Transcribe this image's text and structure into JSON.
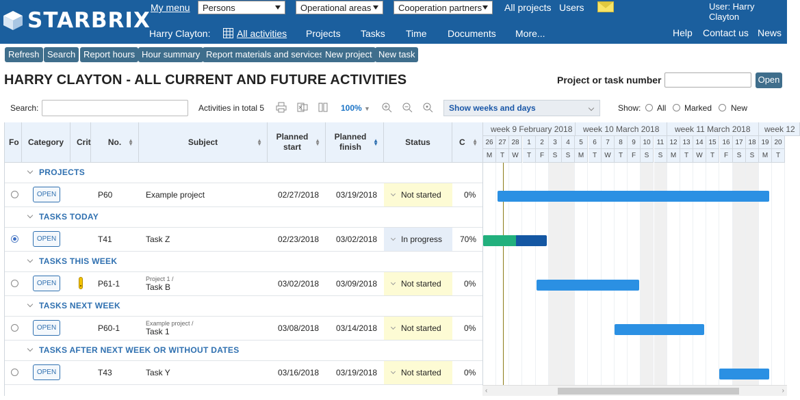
{
  "header": {
    "logo": "STARBRIX",
    "my_menu": "My menu",
    "dropdowns": [
      "Persons",
      "Operational areas",
      "Cooperation partners"
    ],
    "all_projects": "All projects",
    "users": "Users",
    "user_label": "User: Harry Clayton",
    "person_label": "Harry Clayton:",
    "nav": [
      "All activities",
      "Projects",
      "Tasks",
      "Time",
      "Documents",
      "More..."
    ],
    "right_links": [
      "Help",
      "Contact us",
      "News"
    ]
  },
  "toolbar": [
    "Refresh",
    "Search",
    "Report hours",
    "Hour summary",
    "Report materials and services",
    "New project",
    "New task"
  ],
  "page_title": "HARRY CLAYTON - ALL CURRENT AND FUTURE ACTIVITIES",
  "project_task_number_label": "Project or task number",
  "open_label": "Open",
  "filters": {
    "search_label": "Search:",
    "total": "Activities in total 5",
    "zoom": "100%",
    "show_select_prefix": "Show ",
    "show_select_value": "weeks and days",
    "show_label": "Show:",
    "show_options": [
      "All",
      "Marked",
      "New"
    ]
  },
  "columns": [
    "Fo",
    "Category",
    "Crit",
    "No.",
    "Subject",
    "Planned start",
    "Planned finish",
    "Status",
    "C"
  ],
  "groups": [
    {
      "title": "PROJECTS",
      "rows": [
        {
          "category": "OPEN",
          "critical": false,
          "no": "P60",
          "parent": "",
          "subject": "Example project",
          "start": "02/27/2018",
          "finish": "03/19/2018",
          "status": "Not started",
          "completion": "0%",
          "selected": false
        }
      ]
    },
    {
      "title": "TASKS TODAY",
      "rows": [
        {
          "category": "OPEN",
          "critical": false,
          "no": "T41",
          "parent": "",
          "subject": "Task Z",
          "start": "02/23/2018",
          "finish": "03/02/2018",
          "status": "In progress",
          "completion": "70%",
          "selected": true
        }
      ]
    },
    {
      "title": "TASKS THIS WEEK",
      "rows": [
        {
          "category": "OPEN",
          "critical": true,
          "no": "P61-1",
          "parent": "Project 1 /",
          "subject": "Task B",
          "start": "03/02/2018",
          "finish": "03/09/2018",
          "status": "Not started",
          "completion": "0%",
          "selected": false
        }
      ]
    },
    {
      "title": "TASKS NEXT WEEK",
      "rows": [
        {
          "category": "OPEN",
          "critical": false,
          "no": "P60-1",
          "parent": "Example project /",
          "subject": "Task 1",
          "start": "03/08/2018",
          "finish": "03/14/2018",
          "status": "Not started",
          "completion": "0%",
          "selected": false
        }
      ]
    },
    {
      "title": "TASKS AFTER NEXT WEEK OR WITHOUT DATES",
      "rows": [
        {
          "category": "OPEN",
          "critical": false,
          "no": "T43",
          "parent": "",
          "subject": "Task Y",
          "start": "03/16/2018",
          "finish": "03/19/2018",
          "status": "Not started",
          "completion": "0%",
          "selected": false
        }
      ]
    }
  ],
  "gantt": {
    "weeks": [
      "week 9 February 2018",
      "week 10 March 2018",
      "week 11 March 2018",
      "week 12"
    ],
    "days": [
      "26",
      "27",
      "28",
      "1",
      "2",
      "3",
      "4",
      "5",
      "6",
      "7",
      "8",
      "9",
      "10",
      "11",
      "12",
      "13",
      "14",
      "15",
      "16",
      "17",
      "18",
      "19",
      "20"
    ],
    "day_letters": [
      "M",
      "T",
      "W",
      "T",
      "F",
      "S",
      "S",
      "M",
      "T",
      "W",
      "T",
      "F",
      "S",
      "S",
      "M",
      "T",
      "W",
      "T",
      "F",
      "S",
      "S",
      "M",
      "T"
    ],
    "colors": {
      "bar": "#2b90e3",
      "progress_done": "#22b07d",
      "progress_rest": "#1457a3",
      "accent": "#1b5f9e"
    }
  }
}
